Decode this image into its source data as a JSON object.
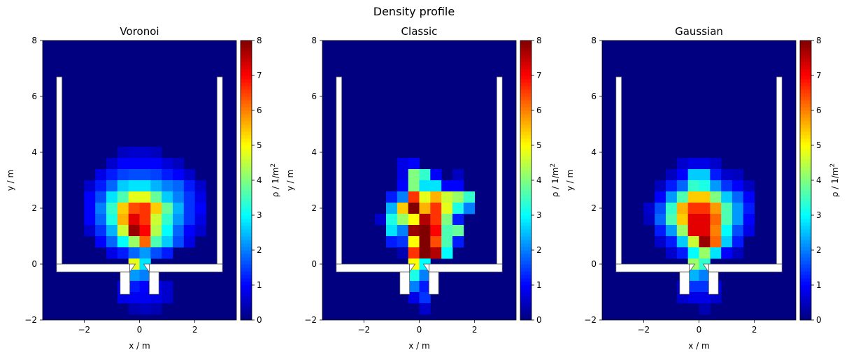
{
  "figure": {
    "title": "Density profile"
  },
  "colorbar": {
    "label_main": "ρ / 1/m",
    "label_sup": "2",
    "ticks": [
      "0",
      "1",
      "2",
      "3",
      "4",
      "5",
      "6",
      "7",
      "8"
    ],
    "range": [
      0,
      8
    ],
    "colormap": "jet"
  },
  "chart_data": [
    {
      "type": "heatmap",
      "title": "Voronoi",
      "xlabel": "x / m",
      "ylabel": "y / m",
      "xlim": [
        -3.5,
        3.5
      ],
      "ylim": [
        -2,
        8
      ],
      "xticks": [
        -2,
        0,
        2
      ],
      "yticks": [
        -2,
        0,
        2,
        4,
        6,
        8
      ],
      "cell_size": 0.4,
      "x_cells": [
        -2.4,
        -2.0,
        -1.6,
        -1.2,
        -0.8,
        -0.4,
        0.0,
        0.4,
        0.8,
        1.2,
        1.6,
        2.0
      ],
      "y_cells": [
        3.8,
        3.4,
        3.0,
        2.6,
        2.2,
        1.8,
        1.4,
        1.0,
        0.6,
        0.2,
        -0.2,
        -0.6,
        -1.0,
        -1.4,
        -1.8
      ],
      "values": [
        [
          0,
          0,
          0,
          0,
          0.5,
          0.6,
          0.6,
          0.5,
          0,
          0,
          0,
          0
        ],
        [
          0,
          0,
          0,
          0.6,
          1.0,
          1.0,
          1.0,
          1.0,
          0.7,
          0.5,
          0,
          0
        ],
        [
          0,
          0,
          0.8,
          1.2,
          1.5,
          1.6,
          1.6,
          1.5,
          1.2,
          1.0,
          0.6,
          0
        ],
        [
          0,
          0.6,
          1.2,
          1.8,
          2.6,
          2.8,
          2.8,
          2.4,
          2.0,
          1.8,
          1.2,
          0.6
        ],
        [
          0,
          1.0,
          1.6,
          2.8,
          3.6,
          4.8,
          4.8,
          3.8,
          2.6,
          2.0,
          1.4,
          0.8
        ],
        [
          0,
          1.0,
          2.0,
          3.4,
          5.4,
          6.4,
          6.6,
          5.4,
          3.8,
          2.4,
          1.4,
          1.0
        ],
        [
          0,
          1.0,
          1.8,
          3.2,
          5.6,
          7.2,
          6.6,
          4.6,
          3.4,
          2.2,
          1.4,
          0.8
        ],
        [
          0,
          0.6,
          1.4,
          2.4,
          4.6,
          7.8,
          7.0,
          4.4,
          3.0,
          1.8,
          1.0,
          0.6
        ],
        [
          0,
          0,
          1.0,
          1.8,
          3.0,
          4.2,
          6.2,
          3.6,
          2.6,
          1.6,
          0.8,
          0
        ],
        [
          0,
          0,
          0,
          0.8,
          1.2,
          1.8,
          2.2,
          1.6,
          1.2,
          0,
          0,
          0
        ],
        [
          0,
          0,
          0,
          0,
          0,
          4.8,
          2.8,
          0,
          0,
          0,
          0,
          0
        ],
        [
          0,
          0,
          0,
          0,
          0,
          2.2,
          2.0,
          0,
          0,
          0,
          0,
          0
        ],
        [
          0,
          0,
          0,
          0,
          0.8,
          1.2,
          1.0,
          0.8,
          0.6,
          0,
          0,
          0
        ],
        [
          0,
          0,
          0,
          0,
          0.8,
          0.9,
          0.9,
          0.8,
          0.6,
          0,
          0,
          0
        ],
        [
          0,
          0,
          0,
          0,
          0,
          0.4,
          0.5,
          0.4,
          0,
          0,
          0,
          0
        ]
      ]
    },
    {
      "type": "heatmap",
      "title": "Classic",
      "xlabel": "x / m",
      "ylabel": "y / m",
      "xlim": [
        -3.5,
        3.5
      ],
      "ylim": [
        -2,
        8
      ],
      "xticks": [
        -2,
        0,
        2
      ],
      "yticks": [
        -2,
        0,
        2,
        4,
        6,
        8
      ],
      "cell_size": 0.4,
      "x_cells": [
        -2.4,
        -2.0,
        -1.6,
        -1.2,
        -0.8,
        -0.4,
        0.0,
        0.4,
        0.8,
        1.2,
        1.6,
        2.0
      ],
      "y_cells": [
        3.8,
        3.4,
        3.0,
        2.6,
        2.2,
        1.8,
        1.4,
        1.0,
        0.6,
        0.2,
        -0.2,
        -0.6,
        -1.0,
        -1.4,
        -1.8
      ],
      "values": [
        [
          0,
          0,
          0,
          0,
          0,
          0,
          0,
          0,
          0,
          0,
          0,
          0
        ],
        [
          0,
          0,
          0,
          0,
          0.8,
          1.0,
          0,
          0,
          0,
          0,
          0,
          0
        ],
        [
          0,
          0,
          0,
          0,
          0.8,
          4.0,
          3.4,
          1.0,
          0,
          0.5,
          0,
          0
        ],
        [
          0,
          0,
          0,
          0,
          1.0,
          4.0,
          2.8,
          2.8,
          1.0,
          1.0,
          0,
          0
        ],
        [
          0,
          0,
          0,
          1.2,
          2.0,
          6.6,
          4.8,
          5.6,
          4.6,
          4.2,
          3.4,
          0
        ],
        [
          0,
          0,
          0,
          2.4,
          5.4,
          8.0,
          5.6,
          6.6,
          4.8,
          3.2,
          2.0,
          0
        ],
        [
          0,
          0,
          0.6,
          3.2,
          4.2,
          5.0,
          7.6,
          6.6,
          4.0,
          1.2,
          0,
          0
        ],
        [
          0,
          0,
          0,
          2.8,
          2.0,
          7.8,
          8.0,
          7.0,
          3.6,
          3.8,
          0,
          0
        ],
        [
          0,
          0,
          0,
          1.2,
          1.4,
          5.0,
          8.0,
          6.4,
          3.6,
          1.2,
          0,
          0
        ],
        [
          0,
          0,
          0,
          0,
          0.4,
          6.6,
          8.0,
          7.6,
          3.0,
          0,
          0,
          0
        ],
        [
          0,
          0,
          0,
          0,
          0,
          5.0,
          3.0,
          0,
          0,
          0,
          0,
          0
        ],
        [
          0,
          0,
          0,
          0,
          0,
          3.2,
          2.0,
          0,
          0,
          0,
          0,
          0
        ],
        [
          0,
          0,
          0,
          0,
          0,
          2.0,
          1.2,
          0,
          0,
          0,
          0,
          0
        ],
        [
          0,
          0,
          0,
          0,
          0,
          0.8,
          1.4,
          0,
          0,
          0,
          0,
          0
        ],
        [
          0,
          0,
          0,
          0,
          0,
          0,
          0.6,
          0,
          0,
          0,
          0,
          0
        ]
      ]
    },
    {
      "type": "heatmap",
      "title": "Gaussian",
      "xlabel": "x / m",
      "ylabel": "y / m",
      "xlim": [
        -3.5,
        3.5
      ],
      "ylim": [
        -2,
        8
      ],
      "xticks": [
        -2,
        0,
        2
      ],
      "yticks": [
        -2,
        0,
        2,
        4,
        6,
        8
      ],
      "cell_size": 0.4,
      "x_cells": [
        -2.4,
        -2.0,
        -1.6,
        -1.2,
        -0.8,
        -0.4,
        0.0,
        0.4,
        0.8,
        1.2,
        1.6,
        2.0
      ],
      "y_cells": [
        3.8,
        3.4,
        3.0,
        2.6,
        2.2,
        1.8,
        1.4,
        1.0,
        0.6,
        0.2,
        -0.2,
        -0.6,
        -1.0,
        -1.4,
        -1.8
      ],
      "values": [
        [
          0,
          0,
          0,
          0,
          0,
          0,
          0,
          0,
          0,
          0,
          0,
          0
        ],
        [
          0,
          0,
          0,
          0,
          0.6,
          0.8,
          0.8,
          0.6,
          0,
          0,
          0,
          0
        ],
        [
          0,
          0,
          0,
          0.5,
          1.0,
          2.6,
          2.6,
          1.2,
          0.6,
          0.5,
          0,
          0
        ],
        [
          0,
          0,
          0.5,
          1.2,
          1.8,
          3.4,
          3.2,
          2.2,
          1.4,
          1.0,
          0.5,
          0
        ],
        [
          0,
          0,
          1.0,
          2.2,
          3.6,
          5.4,
          5.4,
          4.0,
          2.6,
          1.8,
          1.0,
          0
        ],
        [
          0,
          0.6,
          1.6,
          3.4,
          5.6,
          6.6,
          6.6,
          5.8,
          3.6,
          2.2,
          1.2,
          0
        ],
        [
          0,
          0.5,
          1.8,
          3.6,
          5.4,
          7.2,
          7.2,
          6.2,
          3.6,
          2.2,
          1.0,
          0
        ],
        [
          0,
          0,
          1.2,
          2.2,
          4.2,
          7.2,
          7.2,
          6.0,
          3.0,
          1.6,
          0.8,
          0
        ],
        [
          0,
          0,
          0.6,
          1.2,
          2.6,
          4.6,
          7.8,
          6.2,
          2.6,
          1.2,
          0,
          0
        ],
        [
          0,
          0,
          0,
          0.6,
          1.2,
          3.0,
          4.2,
          2.8,
          1.0,
          0.5,
          0,
          0
        ],
        [
          0,
          0,
          0,
          0,
          0,
          4.2,
          3.4,
          0,
          0,
          0,
          0,
          0
        ],
        [
          0,
          0,
          0,
          0,
          0,
          2.4,
          2.0,
          0,
          0,
          0,
          0,
          0
        ],
        [
          0,
          0,
          0,
          0,
          0.6,
          1.4,
          1.4,
          0.8,
          0,
          0,
          0,
          0
        ],
        [
          0,
          0,
          0,
          0,
          0.6,
          0.8,
          0.8,
          0.6,
          0,
          0,
          0,
          0
        ],
        [
          0,
          0,
          0,
          0,
          0,
          0,
          0.4,
          0,
          0,
          0,
          0,
          0
        ]
      ]
    }
  ]
}
